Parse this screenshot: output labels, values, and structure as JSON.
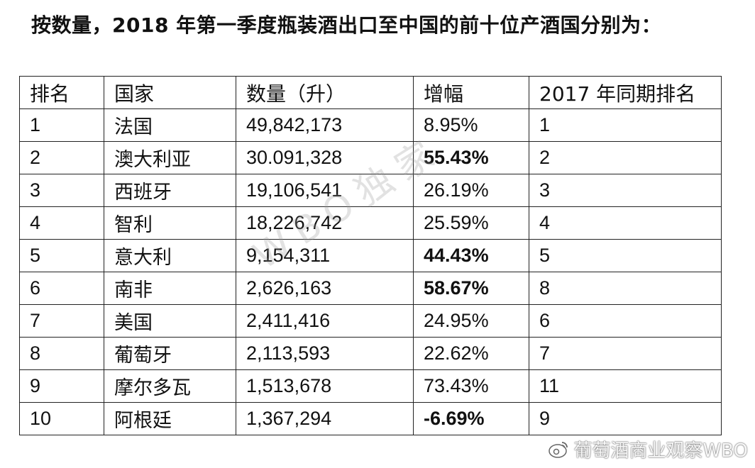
{
  "title": "按数量，2018 年第一季度瓶装酒出口至中国的前十位产酒国分别为：",
  "table": {
    "headers": [
      "排名",
      "国家",
      "数量（升）",
      "增幅",
      "2017 年同期排名"
    ],
    "rows": [
      {
        "rank": "1",
        "country": "法国",
        "volume": "49,842,173",
        "growth": "8.95%",
        "rank_2017": "1",
        "growth_bold": false
      },
      {
        "rank": "2",
        "country": "澳大利亚",
        "volume": "30.091,328",
        "growth": "55.43%",
        "rank_2017": "2",
        "growth_bold": true
      },
      {
        "rank": "3",
        "country": "西班牙",
        "volume": "19,106,541",
        "growth": "26.19%",
        "rank_2017": "3",
        "growth_bold": false
      },
      {
        "rank": "4",
        "country": "智利",
        "volume": "18,226,742",
        "growth": "25.59%",
        "rank_2017": "4",
        "growth_bold": false
      },
      {
        "rank": "5",
        "country": "意大利",
        "volume": "9,154,311",
        "growth": "44.43%",
        "rank_2017": "5",
        "growth_bold": true
      },
      {
        "rank": "6",
        "country": "南非",
        "volume": "2,626,163",
        "growth": "58.67%",
        "rank_2017": "8",
        "growth_bold": true
      },
      {
        "rank": "7",
        "country": "美国",
        "volume": "2,411,416",
        "growth": "24.95%",
        "rank_2017": "6",
        "growth_bold": false
      },
      {
        "rank": "8",
        "country": "葡萄牙",
        "volume": "2,113,593",
        "growth": "22.62%",
        "rank_2017": "7",
        "growth_bold": false
      },
      {
        "rank": "9",
        "country": "摩尔多瓦",
        "volume": "1,513,678",
        "growth": "73.43%",
        "rank_2017": "11",
        "growth_bold": false
      },
      {
        "rank": "10",
        "country": "阿根廷",
        "volume": "1,367,294",
        "growth": "-6.69%",
        "rank_2017": "9",
        "growth_bold": true
      }
    ]
  },
  "watermark": "WBO独家",
  "footer": {
    "icon": "weibo-icon",
    "text": "葡萄酒商业观察WBO"
  }
}
